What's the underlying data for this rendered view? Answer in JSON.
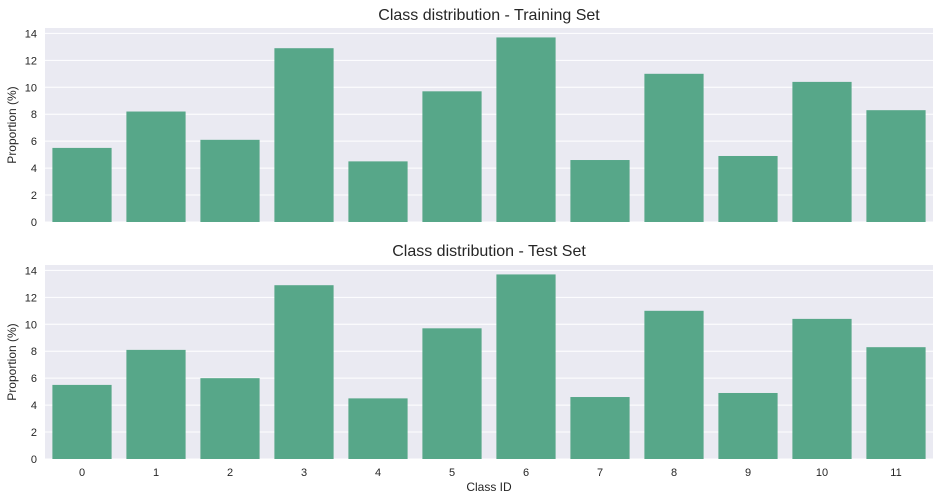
{
  "chart_data": [
    {
      "type": "bar",
      "title": "Class distribution - Training Set",
      "xlabel": "",
      "ylabel": "Proportion (%)",
      "categories": [
        "0",
        "1",
        "2",
        "3",
        "4",
        "5",
        "6",
        "7",
        "8",
        "9",
        "10",
        "11"
      ],
      "values": [
        5.5,
        8.2,
        6.1,
        12.9,
        4.5,
        9.7,
        13.7,
        4.6,
        11.0,
        4.9,
        10.4,
        8.3
      ],
      "ylim": [
        0,
        14.4
      ],
      "yticks": [
        0,
        2,
        4,
        6,
        8,
        10,
        12,
        14
      ],
      "show_xticklabels": false,
      "grid": true,
      "bar_color": "#57a789",
      "background_color": "#eaeaf2"
    },
    {
      "type": "bar",
      "title": "Class distribution - Test Set",
      "xlabel": "Class ID",
      "ylabel": "Proportion (%)",
      "categories": [
        "0",
        "1",
        "2",
        "3",
        "4",
        "5",
        "6",
        "7",
        "8",
        "9",
        "10",
        "11"
      ],
      "values": [
        5.5,
        8.1,
        6.0,
        12.9,
        4.5,
        9.7,
        13.7,
        4.6,
        11.0,
        4.9,
        10.4,
        8.3
      ],
      "ylim": [
        0,
        14.4
      ],
      "yticks": [
        0,
        2,
        4,
        6,
        8,
        10,
        12,
        14
      ],
      "show_xticklabels": true,
      "grid": true,
      "bar_color": "#57a789",
      "background_color": "#eaeaf2"
    }
  ]
}
